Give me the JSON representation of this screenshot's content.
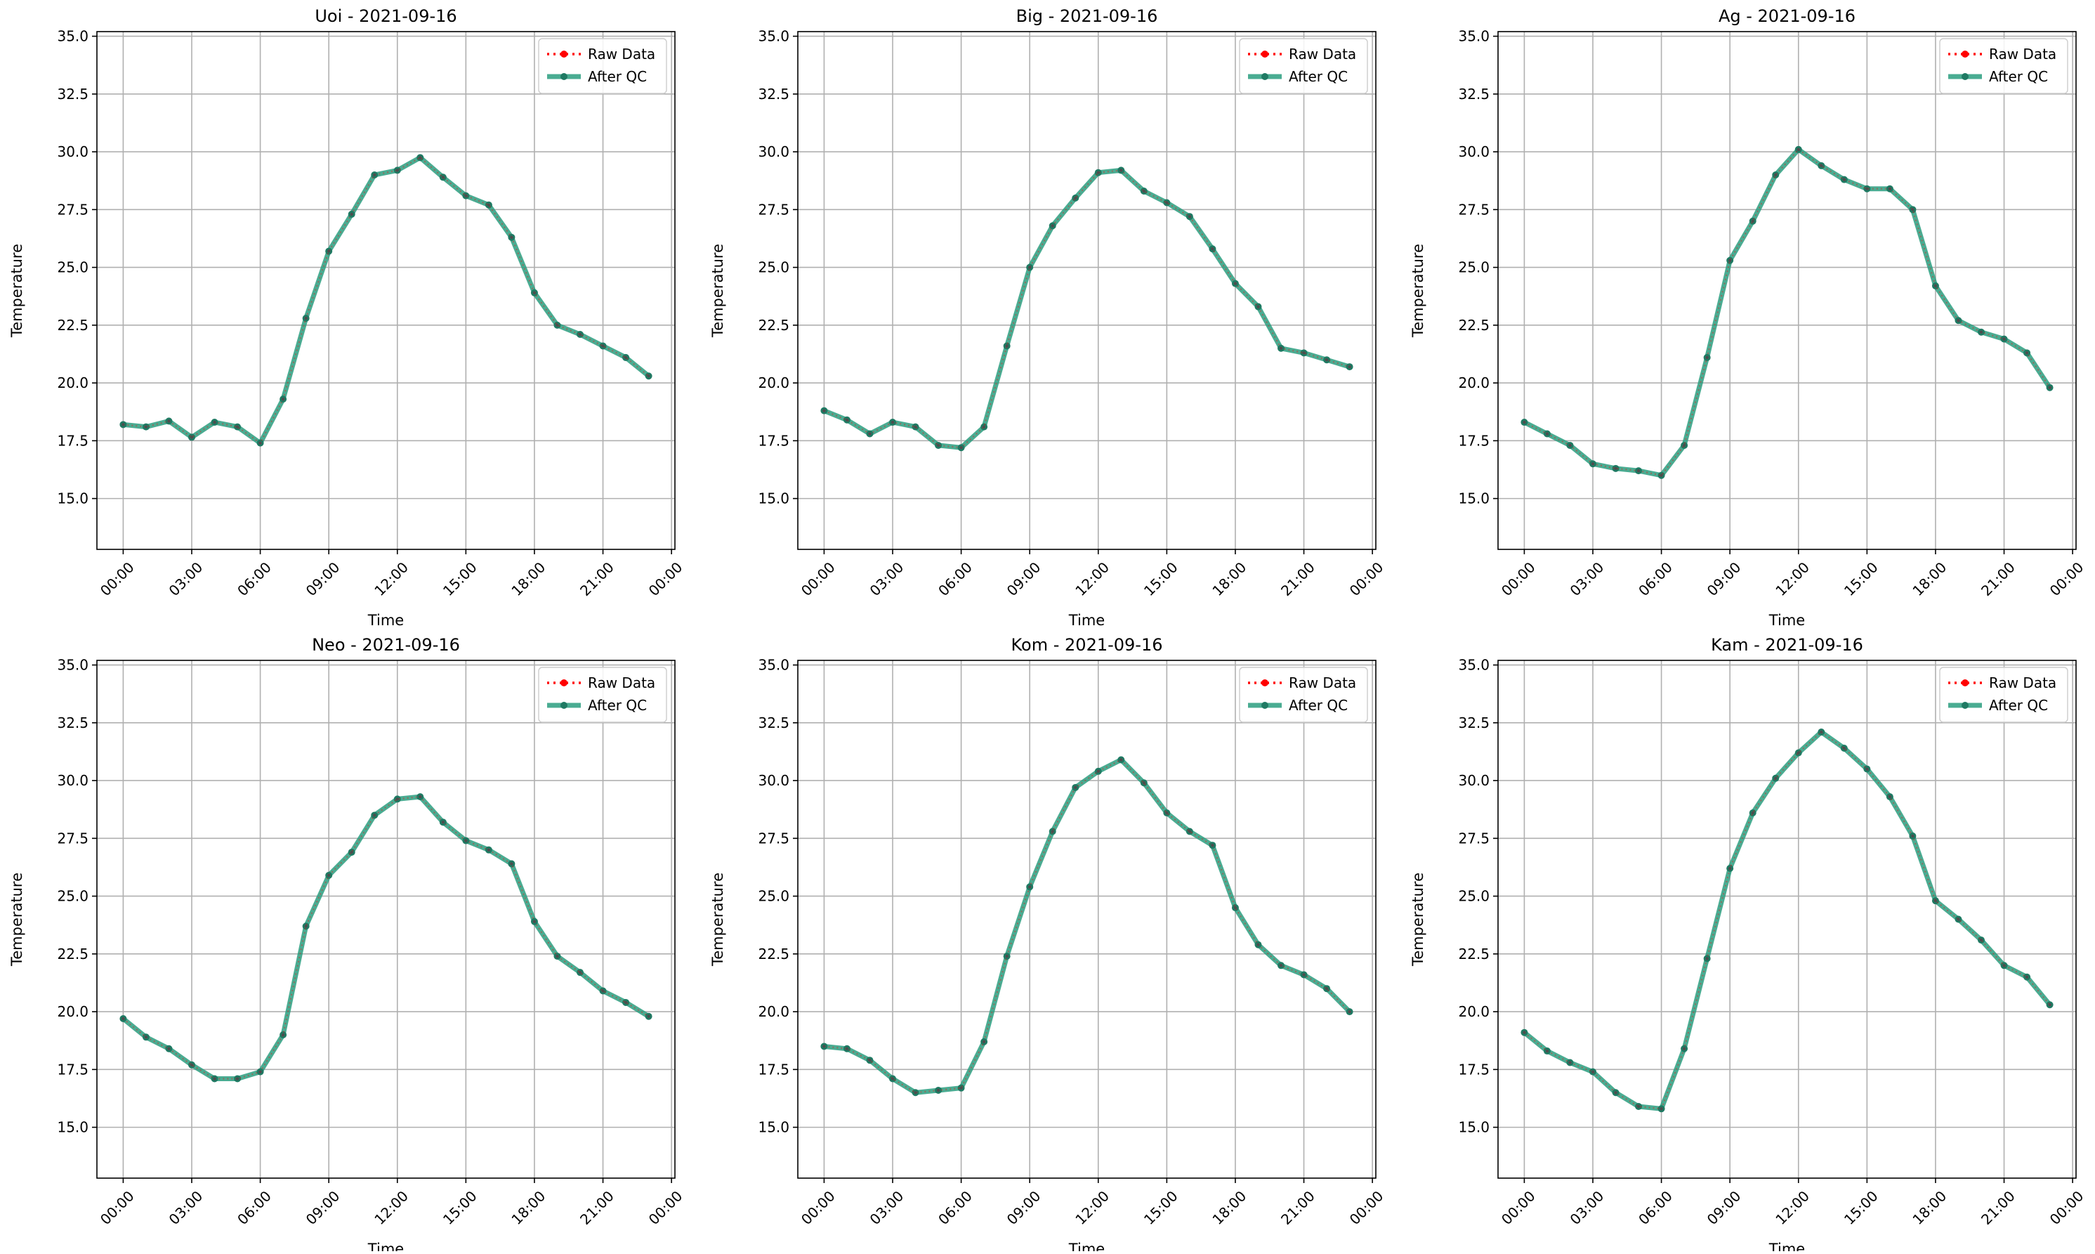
{
  "chart_data": [
    {
      "type": "line",
      "title": "Uoi - 2021-09-16",
      "xlabel": "Time",
      "ylabel": "Temperature",
      "xticks": [
        "00:00",
        "03:00",
        "06:00",
        "09:00",
        "12:00",
        "15:00",
        "18:00",
        "21:00",
        "00:00"
      ],
      "yticks": [
        "15.0",
        "17.5",
        "20.0",
        "22.5",
        "25.0",
        "27.5",
        "30.0",
        "32.5",
        "35.0"
      ],
      "ylim": [
        12.8,
        35.2
      ],
      "grid": true,
      "legend_position": "top-right",
      "series": [
        {
          "name": "Raw Data",
          "color": "#ff0000",
          "style": "dotted",
          "x": [
            0,
            1,
            2,
            3,
            4,
            5,
            6,
            7,
            8,
            9,
            10,
            11,
            12,
            13,
            14,
            15,
            16,
            17,
            18,
            19,
            20,
            21,
            22,
            23
          ],
          "y": [
            18.2,
            18.1,
            18.35,
            17.65,
            18.3,
            18.1,
            17.4,
            19.3,
            22.8,
            25.7,
            27.3,
            29.0,
            29.2,
            29.75,
            28.9,
            28.1,
            27.7,
            26.3,
            23.9,
            22.5,
            22.1,
            21.6,
            21.1,
            20.3
          ]
        },
        {
          "name": "After QC",
          "color": "#2a9d7f",
          "style": "solid",
          "x": [
            0,
            1,
            2,
            3,
            4,
            5,
            6,
            7,
            8,
            9,
            10,
            11,
            12,
            13,
            14,
            15,
            16,
            17,
            18,
            19,
            20,
            21,
            22,
            23
          ],
          "y": [
            18.2,
            18.1,
            18.35,
            17.65,
            18.3,
            18.1,
            17.4,
            19.3,
            22.8,
            25.7,
            27.3,
            29.0,
            29.2,
            29.75,
            28.9,
            28.1,
            27.7,
            26.3,
            23.9,
            22.5,
            22.1,
            21.6,
            21.1,
            20.3
          ]
        }
      ]
    },
    {
      "type": "line",
      "title": "Big - 2021-09-16",
      "xlabel": "Time",
      "ylabel": "Temperature",
      "xticks": [
        "00:00",
        "03:00",
        "06:00",
        "09:00",
        "12:00",
        "15:00",
        "18:00",
        "21:00",
        "00:00"
      ],
      "yticks": [
        "15.0",
        "17.5",
        "20.0",
        "22.5",
        "25.0",
        "27.5",
        "30.0",
        "32.5",
        "35.0"
      ],
      "ylim": [
        12.8,
        35.2
      ],
      "grid": true,
      "legend_position": "top-right",
      "series": [
        {
          "name": "Raw Data",
          "color": "#ff0000",
          "style": "dotted",
          "x": [
            0,
            1,
            2,
            3,
            4,
            5,
            6,
            7,
            8,
            9,
            10,
            11,
            12,
            13,
            14,
            15,
            16,
            17,
            18,
            19,
            20,
            21,
            22,
            23
          ],
          "y": [
            18.8,
            18.4,
            17.8,
            18.3,
            18.1,
            17.3,
            17.2,
            18.1,
            21.6,
            25.0,
            26.8,
            28.0,
            29.1,
            29.2,
            28.3,
            27.8,
            27.2,
            25.8,
            24.3,
            23.3,
            21.5,
            21.3,
            21.0,
            20.7
          ]
        },
        {
          "name": "After QC",
          "color": "#2a9d7f",
          "style": "solid",
          "x": [
            0,
            1,
            2,
            3,
            4,
            5,
            6,
            7,
            8,
            9,
            10,
            11,
            12,
            13,
            14,
            15,
            16,
            17,
            18,
            19,
            20,
            21,
            22,
            23
          ],
          "y": [
            18.8,
            18.4,
            17.8,
            18.3,
            18.1,
            17.3,
            17.2,
            18.1,
            21.6,
            25.0,
            26.8,
            28.0,
            29.1,
            29.2,
            28.3,
            27.8,
            27.2,
            25.8,
            24.3,
            23.3,
            21.5,
            21.3,
            21.0,
            20.7
          ]
        }
      ]
    },
    {
      "type": "line",
      "title": "Ag - 2021-09-16",
      "xlabel": "Time",
      "ylabel": "Temperature",
      "xticks": [
        "00:00",
        "03:00",
        "06:00",
        "09:00",
        "12:00",
        "15:00",
        "18:00",
        "21:00",
        "00:00"
      ],
      "yticks": [
        "15.0",
        "17.5",
        "20.0",
        "22.5",
        "25.0",
        "27.5",
        "30.0",
        "32.5",
        "35.0"
      ],
      "ylim": [
        12.8,
        35.2
      ],
      "grid": true,
      "legend_position": "top-right",
      "series": [
        {
          "name": "Raw Data",
          "color": "#ff0000",
          "style": "dotted",
          "x": [
            0,
            1,
            2,
            3,
            4,
            5,
            6,
            7,
            8,
            9,
            10,
            11,
            12,
            13,
            14,
            15,
            16,
            17,
            18,
            19,
            20,
            21,
            22,
            23
          ],
          "y": [
            18.3,
            17.8,
            17.3,
            16.5,
            16.3,
            16.2,
            16.0,
            17.3,
            21.1,
            25.3,
            27.0,
            29.0,
            30.1,
            29.4,
            28.8,
            28.4,
            28.4,
            27.5,
            24.2,
            22.7,
            22.2,
            21.9,
            21.3,
            19.8
          ]
        },
        {
          "name": "After QC",
          "color": "#2a9d7f",
          "style": "solid",
          "x": [
            0,
            1,
            2,
            3,
            4,
            5,
            6,
            7,
            8,
            9,
            10,
            11,
            12,
            13,
            14,
            15,
            16,
            17,
            18,
            19,
            20,
            21,
            22,
            23
          ],
          "y": [
            18.3,
            17.8,
            17.3,
            16.5,
            16.3,
            16.2,
            16.0,
            17.3,
            21.1,
            25.3,
            27.0,
            29.0,
            30.1,
            29.4,
            28.8,
            28.4,
            28.4,
            27.5,
            24.2,
            22.7,
            22.2,
            21.9,
            21.3,
            19.8
          ]
        }
      ]
    },
    {
      "type": "line",
      "title": "Neo - 2021-09-16",
      "xlabel": "Time",
      "ylabel": "Temperature",
      "xticks": [
        "00:00",
        "03:00",
        "06:00",
        "09:00",
        "12:00",
        "15:00",
        "18:00",
        "21:00",
        "00:00"
      ],
      "yticks": [
        "15.0",
        "17.5",
        "20.0",
        "22.5",
        "25.0",
        "27.5",
        "30.0",
        "32.5",
        "35.0"
      ],
      "ylim": [
        12.8,
        35.2
      ],
      "grid": true,
      "legend_position": "top-right",
      "series": [
        {
          "name": "Raw Data",
          "color": "#ff0000",
          "style": "dotted",
          "x": [
            0,
            1,
            2,
            3,
            4,
            5,
            6,
            7,
            8,
            9,
            10,
            11,
            12,
            13,
            14,
            15,
            16,
            17,
            18,
            19,
            20,
            21,
            22,
            23
          ],
          "y": [
            19.7,
            18.9,
            18.4,
            17.7,
            17.1,
            17.1,
            17.4,
            19.0,
            23.7,
            25.9,
            26.9,
            28.5,
            29.2,
            29.3,
            28.2,
            27.4,
            27.0,
            26.4,
            23.9,
            22.4,
            21.7,
            20.9,
            20.4,
            19.8
          ]
        },
        {
          "name": "After QC",
          "color": "#2a9d7f",
          "style": "solid",
          "x": [
            0,
            1,
            2,
            3,
            4,
            5,
            6,
            7,
            8,
            9,
            10,
            11,
            12,
            13,
            14,
            15,
            16,
            17,
            18,
            19,
            20,
            21,
            22,
            23
          ],
          "y": [
            19.7,
            18.9,
            18.4,
            17.7,
            17.1,
            17.1,
            17.4,
            19.0,
            23.7,
            25.9,
            26.9,
            28.5,
            29.2,
            29.3,
            28.2,
            27.4,
            27.0,
            26.4,
            23.9,
            22.4,
            21.7,
            20.9,
            20.4,
            19.8
          ]
        }
      ]
    },
    {
      "type": "line",
      "title": "Kom - 2021-09-16",
      "xlabel": "Time",
      "ylabel": "Temperature",
      "xticks": [
        "00:00",
        "03:00",
        "06:00",
        "09:00",
        "12:00",
        "15:00",
        "18:00",
        "21:00",
        "00:00"
      ],
      "yticks": [
        "15.0",
        "17.5",
        "20.0",
        "22.5",
        "25.0",
        "27.5",
        "30.0",
        "32.5",
        "35.0"
      ],
      "ylim": [
        12.8,
        35.2
      ],
      "grid": true,
      "legend_position": "top-right",
      "series": [
        {
          "name": "Raw Data",
          "color": "#ff0000",
          "style": "dotted",
          "x": [
            0,
            1,
            2,
            3,
            4,
            5,
            6,
            7,
            8,
            9,
            10,
            11,
            12,
            13,
            14,
            15,
            16,
            17,
            18,
            19,
            20,
            21,
            22,
            23
          ],
          "y": [
            18.5,
            18.4,
            17.9,
            17.1,
            16.5,
            16.6,
            16.7,
            18.7,
            22.4,
            25.4,
            27.8,
            29.7,
            30.4,
            30.9,
            29.9,
            28.6,
            27.8,
            27.2,
            24.5,
            22.9,
            22.0,
            21.6,
            21.0,
            20.0
          ]
        },
        {
          "name": "After QC",
          "color": "#2a9d7f",
          "style": "solid",
          "x": [
            0,
            1,
            2,
            3,
            4,
            5,
            6,
            7,
            8,
            9,
            10,
            11,
            12,
            13,
            14,
            15,
            16,
            17,
            18,
            19,
            20,
            21,
            22,
            23
          ],
          "y": [
            18.5,
            18.4,
            17.9,
            17.1,
            16.5,
            16.6,
            16.7,
            18.7,
            22.4,
            25.4,
            27.8,
            29.7,
            30.4,
            30.9,
            29.9,
            28.6,
            27.8,
            27.2,
            24.5,
            22.9,
            22.0,
            21.6,
            21.0,
            20.0
          ]
        }
      ]
    },
    {
      "type": "line",
      "title": "Kam - 2021-09-16",
      "xlabel": "Time",
      "ylabel": "Temperature",
      "xticks": [
        "00:00",
        "03:00",
        "06:00",
        "09:00",
        "12:00",
        "15:00",
        "18:00",
        "21:00",
        "00:00"
      ],
      "yticks": [
        "15.0",
        "17.5",
        "20.0",
        "22.5",
        "25.0",
        "27.5",
        "30.0",
        "32.5",
        "35.0"
      ],
      "ylim": [
        12.8,
        35.2
      ],
      "grid": true,
      "legend_position": "top-right",
      "series": [
        {
          "name": "Raw Data",
          "color": "#ff0000",
          "style": "dotted",
          "x": [
            0,
            1,
            2,
            3,
            4,
            5,
            6,
            7,
            8,
            9,
            10,
            11,
            12,
            13,
            14,
            15,
            16,
            17,
            18,
            19,
            20,
            21,
            22,
            23
          ],
          "y": [
            19.1,
            18.3,
            17.8,
            17.4,
            16.5,
            15.9,
            15.8,
            18.4,
            22.3,
            26.2,
            28.6,
            30.1,
            31.2,
            32.1,
            31.4,
            30.5,
            29.3,
            27.6,
            24.8,
            24.0,
            23.1,
            22.0,
            21.5,
            20.3
          ]
        },
        {
          "name": "After QC",
          "color": "#2a9d7f",
          "style": "solid",
          "x": [
            0,
            1,
            2,
            3,
            4,
            5,
            6,
            7,
            8,
            9,
            10,
            11,
            12,
            13,
            14,
            15,
            16,
            17,
            18,
            19,
            20,
            21,
            22,
            23
          ],
          "y": [
            19.1,
            18.3,
            17.8,
            17.4,
            16.5,
            15.9,
            15.8,
            18.4,
            22.3,
            26.2,
            28.6,
            30.1,
            31.2,
            32.1,
            31.4,
            30.5,
            29.3,
            27.6,
            24.8,
            24.0,
            23.1,
            22.0,
            21.5,
            20.3
          ]
        }
      ]
    }
  ]
}
